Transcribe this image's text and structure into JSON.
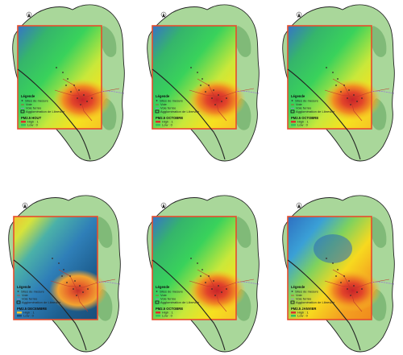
{
  "panels": [
    {
      "id": "p1",
      "scheme": "warm",
      "legend": {
        "title": "Légende",
        "sites": "Sites de mesure",
        "classes": [
          "Voie",
          "Voie ferrée",
          "Agglomération de Libreville"
        ],
        "raster_title": "PM2.5 HOUT",
        "low": "Low : 0",
        "high": "High : 1"
      }
    },
    {
      "id": "p2",
      "scheme": "warm",
      "legend": {
        "title": "Légende",
        "sites": "Sites de mesure",
        "classes": [
          "Voie",
          "Voie ferrée",
          "Agglomération de Libreville"
        ],
        "raster_title": "PM2.5 OCTOBRE",
        "low": "Low : 0",
        "high": "High : 1"
      }
    },
    {
      "id": "p3",
      "scheme": "warm",
      "legend": {
        "title": "Légende",
        "sites": "Sites de mesure",
        "classes": [
          "Voie",
          "Voie ferrée",
          "Agglomération de Libreville"
        ],
        "raster_title": "PM2.5 OCTOBRE",
        "low": "Low : 0",
        "high": "High : 1"
      }
    },
    {
      "id": "p4",
      "scheme": "cool",
      "legend": {
        "title": "Légende",
        "sites": "Sites de mesure",
        "classes": [
          "Voie",
          "Voie ferrée",
          "Agglomération de Libreville"
        ],
        "raster_title": "PM2.5 DECEMBRE",
        "low": "Low : 0",
        "high": "High : 1"
      }
    },
    {
      "id": "p5",
      "scheme": "warm",
      "legend": {
        "title": "Légende",
        "sites": "Sites de mesure",
        "classes": [
          "Voie",
          "Voie ferrée",
          "Agglomération de Libreville"
        ],
        "raster_title": "PM2.5 OCTOBRE",
        "low": "Low : 0",
        "high": "High : 1"
      }
    },
    {
      "id": "p6",
      "scheme": "mixed",
      "legend": {
        "title": "Légende",
        "sites": "Sites de mesure",
        "classes": [
          "Voie",
          "Voie ferrée",
          "Agglomération de Libreville"
        ],
        "raster_title": "PM2.5 JANVIER",
        "low": "Low : 0",
        "high": "High : 1"
      }
    }
  ],
  "colors": {
    "land": "#a9d79a",
    "land_dark": "#6fae6a",
    "water": "#ffffff",
    "frame": "#e74c2c",
    "boundary": "#222222",
    "blue": "#2f7fd0",
    "green": "#2fc45a",
    "yellow": "#f7e11f",
    "orange": "#f29a1f",
    "red": "#d9332a"
  }
}
